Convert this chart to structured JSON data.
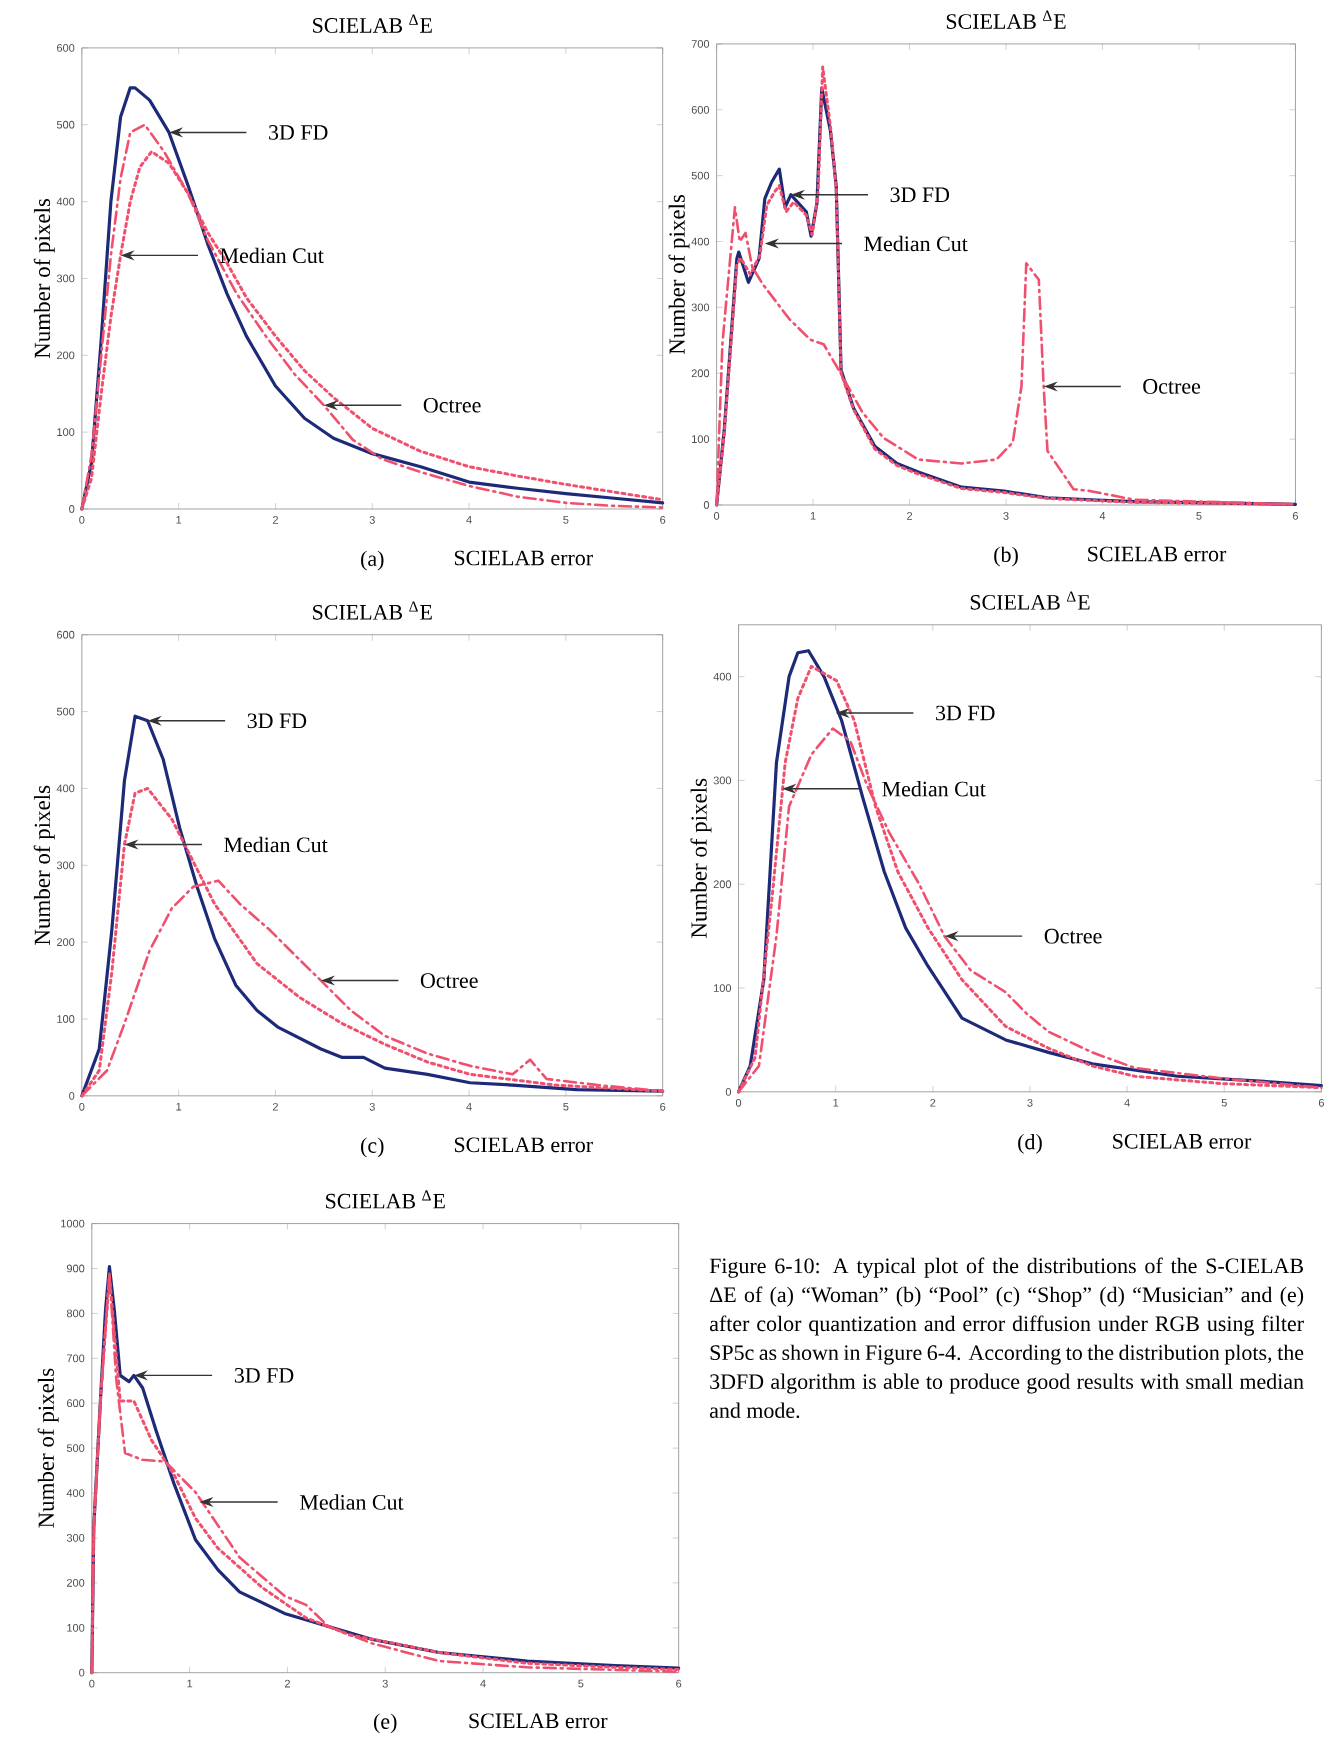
{
  "chart_data": [
    {
      "type": "line",
      "title": "SCIELAB $^{Δ}$E",
      "xlabel": "SCIELAB error",
      "ylabel": "Number of pixels",
      "xlim": [
        0,
        6
      ],
      "ylim": [
        0,
        600
      ],
      "xticks": [
        0,
        1,
        2,
        3,
        4,
        5,
        6
      ],
      "yticks": [
        0,
        100,
        200,
        300,
        400,
        500,
        600
      ],
      "series": [
        {
          "color": "#1c2a78",
          "line_style": "solid",
          "x": [
            0,
            0.1,
            0.2,
            0.3,
            0.4,
            0.5,
            0.55,
            0.7,
            0.9,
            1.1,
            1.3,
            1.5,
            1.7,
            2,
            2.3,
            2.6,
            3,
            3.5,
            4,
            4.5,
            5,
            5.5,
            6
          ],
          "values": [
            0,
            60,
            220,
            400,
            510,
            548,
            548,
            532,
            490,
            420,
            345,
            280,
            225,
            160,
            118,
            92,
            72,
            55,
            35,
            27,
            20,
            14,
            8
          ]
        },
        {
          "color": "#f0506e",
          "line_style": "dotted",
          "x": [
            0,
            0.1,
            0.2,
            0.3,
            0.4,
            0.5,
            0.6,
            0.72,
            0.9,
            1.1,
            1.3,
            1.5,
            1.7,
            2,
            2.3,
            2.6,
            3,
            3.5,
            4,
            4.5,
            5,
            5.5,
            6
          ],
          "values": [
            0,
            40,
            150,
            250,
            330,
            400,
            445,
            465,
            450,
            410,
            360,
            320,
            275,
            225,
            180,
            145,
            105,
            75,
            55,
            43,
            32,
            22,
            12
          ]
        },
        {
          "color": "#f0506e",
          "line_style": "dashdot",
          "x": [
            0,
            0.1,
            0.2,
            0.3,
            0.4,
            0.5,
            0.65,
            0.85,
            1.1,
            1.3,
            1.6,
            1.9,
            2.2,
            2.5,
            2.8,
            3.1,
            3.5,
            4,
            4.5,
            5,
            5.5,
            6
          ],
          "values": [
            0,
            70,
            200,
            330,
            430,
            490,
            500,
            465,
            410,
            350,
            280,
            225,
            175,
            135,
            90,
            65,
            48,
            30,
            16,
            8,
            4,
            2
          ]
        }
      ],
      "annotations": [
        "(a)",
        {
          "text": "3D FD",
          "x": 0.9,
          "y": 490
        },
        {
          "text": "Median Cut",
          "x": 0.4,
          "y": 330
        },
        {
          "text": "Octree",
          "x": 2.5,
          "y": 135
        }
      ]
    },
    {
      "type": "line",
      "title": "SCIELAB $^{Δ}$E",
      "xlabel": "SCIELAB error",
      "ylabel": "Number of pixels",
      "xlim": [
        0,
        6
      ],
      "ylim": [
        0,
        700
      ],
      "xticks": [
        0,
        1,
        2,
        3,
        4,
        5,
        6
      ],
      "yticks": [
        0,
        100,
        200,
        300,
        400,
        500,
        600,
        700
      ],
      "series": [
        {
          "color": "#1c2a78",
          "line_style": "solid",
          "x": [
            0,
            0.08,
            0.21,
            0.23,
            0.33,
            0.44,
            0.5,
            0.57,
            0.65,
            0.71,
            0.77,
            0.93,
            0.98,
            1.04,
            1.09,
            1.18,
            1.24,
            1.29,
            1.42,
            1.64,
            1.87,
            2.09,
            2.54,
            2.98,
            3.43,
            3.88,
            4.33,
            6
          ],
          "values": [
            0,
            115,
            374,
            384,
            338,
            374,
            465,
            490,
            510,
            452,
            471,
            445,
            408,
            458,
            633,
            568,
            484,
            205,
            147,
            89,
            63,
            50,
            27,
            21,
            11,
            8,
            5,
            1
          ]
        },
        {
          "color": "#f0506e",
          "line_style": "dotted",
          "x": [
            0,
            0.08,
            0.21,
            0.25,
            0.35,
            0.45,
            0.52,
            0.6,
            0.65,
            0.72,
            0.8,
            0.93,
            0.99,
            1.05,
            1.1,
            1.18,
            1.24,
            1.29,
            1.42,
            1.64,
            1.87,
            2.09,
            2.54,
            2.98,
            3.43,
            3.88,
            4.33,
            6
          ],
          "values": [
            0,
            110,
            365,
            375,
            350,
            380,
            455,
            475,
            485,
            445,
            460,
            440,
            410,
            470,
            665,
            575,
            480,
            200,
            145,
            85,
            60,
            47,
            25,
            19,
            10,
            7,
            4,
            1
          ]
        },
        {
          "color": "#f0506e",
          "line_style": "dashdot",
          "x": [
            0,
            0.06,
            0.1,
            0.19,
            0.24,
            0.3,
            0.37,
            0.48,
            0.75,
            0.97,
            1.11,
            1.29,
            1.51,
            1.73,
            2.09,
            2.54,
            2.9,
            3.07,
            3.16,
            3.21,
            3.34,
            3.39,
            3.43,
            3.7,
            3.88,
            4.33,
            6
          ],
          "values": [
            0,
            244,
            309,
            452,
            400,
            413,
            361,
            335,
            283,
            251,
            244,
            199,
            141,
            102,
            69,
            63,
            69,
            95,
            180,
            367,
            342,
            180,
            82,
            24,
            21,
            8,
            1
          ]
        }
      ],
      "annotations": [
        "(b)",
        {
          "text": "3D FD",
          "x": 0.77,
          "y": 471
        },
        {
          "text": "Median Cut",
          "x": 0.5,
          "y": 397
        },
        {
          "text": "Octree",
          "x": 3.39,
          "y": 180
        }
      ]
    },
    {
      "type": "line",
      "title": "SCIELAB $^{Δ}$E",
      "xlabel": "SCIELAB error",
      "ylabel": "Number of pixels",
      "xlim": [
        0,
        6
      ],
      "ylim": [
        0,
        600
      ],
      "xticks": [
        0,
        1,
        2,
        3,
        4,
        5,
        6
      ],
      "yticks": [
        0,
        100,
        200,
        300,
        400,
        500,
        600
      ],
      "series": [
        {
          "color": "#1c2a78",
          "line_style": "solid",
          "x": [
            0,
            0.18,
            0.31,
            0.44,
            0.55,
            0.68,
            0.84,
            1.01,
            1.19,
            1.37,
            1.59,
            1.81,
            2.03,
            2.47,
            2.69,
            2.91,
            3.13,
            3.57,
            4.01,
            4.45,
            5.11,
            6
          ],
          "values": [
            0,
            61,
            216,
            410,
            494,
            488,
            438,
            349,
            272,
            205,
            144,
            111,
            89,
            61,
            50,
            50,
            36,
            28,
            17,
            14,
            8,
            6
          ]
        },
        {
          "color": "#f0506e",
          "line_style": "dotted",
          "x": [
            0,
            0.18,
            0.31,
            0.44,
            0.55,
            0.68,
            0.93,
            1.15,
            1.37,
            1.81,
            2.25,
            2.69,
            3.13,
            3.57,
            4.01,
            4.89,
            6
          ],
          "values": [
            0,
            33,
            161,
            327,
            394,
            400,
            360,
            305,
            250,
            172,
            128,
            94,
            67,
            44,
            28,
            14,
            6
          ]
        },
        {
          "color": "#f0506e",
          "line_style": "dashdot",
          "x": [
            0,
            0.26,
            0.44,
            0.7,
            0.93,
            1.15,
            1.41,
            1.63,
            1.94,
            2.25,
            2.47,
            2.78,
            3.13,
            3.57,
            4.01,
            4.45,
            4.63,
            4.8,
            5.33,
            6
          ],
          "values": [
            0,
            33,
            94,
            189,
            244,
            272,
            280,
            250,
            216,
            177,
            150,
            111,
            78,
            55,
            39,
            28,
            47,
            22,
            14,
            6
          ]
        }
      ],
      "annotations": [
        "(c)",
        {
          "text": "3D FD",
          "x": 0.68,
          "y": 488
        },
        {
          "text": "Median Cut",
          "x": 0.44,
          "y": 327
        },
        {
          "text": "Octree",
          "x": 2.47,
          "y": 150
        }
      ]
    },
    {
      "type": "line",
      "title": "SCIELAB $^{Δ}$E",
      "xlabel": "SCIELAB error",
      "ylabel": "Number of pixels",
      "xlim": [
        0,
        6
      ],
      "ylim": [
        0,
        450
      ],
      "xticks": [
        0,
        1,
        2,
        3,
        4,
        5,
        6
      ],
      "yticks": [
        0,
        100,
        200,
        300,
        400
      ],
      "series": [
        {
          "color": "#1c2a78",
          "line_style": "solid",
          "x": [
            0,
            0.12,
            0.26,
            0.39,
            0.52,
            0.61,
            0.72,
            0.88,
            1.06,
            1.28,
            1.5,
            1.72,
            1.95,
            2.3,
            2.75,
            3.19,
            3.64,
            4.52,
            5.41,
            6
          ],
          "values": [
            0,
            25,
            108,
            317,
            400,
            423,
            425,
            400,
            358,
            283,
            212,
            158,
            121,
            71,
            50,
            38,
            27,
            15,
            10,
            6
          ]
        },
        {
          "color": "#f0506e",
          "line_style": "dotted",
          "x": [
            0,
            0.17,
            0.35,
            0.48,
            0.61,
            0.75,
            1.01,
            1.19,
            1.41,
            1.64,
            1.95,
            2.3,
            2.75,
            3.19,
            3.64,
            4.08,
            4.97,
            6
          ],
          "values": [
            0,
            33,
            192,
            317,
            379,
            410,
            396,
            358,
            275,
            212,
            158,
            108,
            63,
            42,
            25,
            15,
            8,
            4
          ]
        },
        {
          "color": "#f0506e",
          "line_style": "dashdot",
          "x": [
            0,
            0.21,
            0.39,
            0.52,
            0.75,
            0.97,
            1.15,
            1.32,
            1.55,
            1.86,
            2.12,
            2.39,
            2.75,
            2.97,
            3.19,
            3.64,
            4.08,
            4.97,
            6
          ],
          "values": [
            0,
            25,
            150,
            275,
            325,
            350,
            338,
            296,
            250,
            200,
            150,
            117,
            96,
            75,
            58,
            38,
            23,
            13,
            4
          ]
        }
      ],
      "annotations": [
        "(d)",
        {
          "text": "3D FD",
          "x": 1.0,
          "y": 365
        },
        {
          "text": "Median Cut",
          "x": 0.45,
          "y": 292
        },
        {
          "text": "Octree",
          "x": 2.12,
          "y": 150
        }
      ]
    },
    {
      "type": "line",
      "title": "SCIELAB $^{Δ}$E",
      "xlabel": "SCIELAB error",
      "ylabel": "Number of pixels",
      "xlim": [
        0,
        6
      ],
      "ylim": [
        0,
        1000
      ],
      "xticks": [
        0,
        1,
        2,
        3,
        4,
        5,
        6
      ],
      "yticks": [
        0,
        100,
        200,
        300,
        400,
        500,
        600,
        700,
        800,
        900,
        1000
      ],
      "series": [
        {
          "color": "#1c2a78",
          "line_style": "solid",
          "x": [
            0,
            0.02,
            0.09,
            0.14,
            0.18,
            0.23,
            0.29,
            0.38,
            0.43,
            0.52,
            0.66,
            0.84,
            1.06,
            1.29,
            1.51,
            1.97,
            2.42,
            2.87,
            3.55,
            4.45,
            5.35,
            6
          ],
          "values": [
            0,
            325,
            614,
            807,
            904,
            807,
            662,
            648,
            662,
            634,
            537,
            421,
            296,
            229,
            180,
            132,
            103,
            74,
            45,
            26,
            16,
            10
          ]
        },
        {
          "color": "#f0506e",
          "line_style": "dotted",
          "x": [
            0,
            0.02,
            0.09,
            0.18,
            0.29,
            0.43,
            0.61,
            0.84,
            1.06,
            1.29,
            1.74,
            2.19,
            2.64,
            3.1,
            3.55,
            4.45,
            5.35,
            6
          ],
          "values": [
            0,
            325,
            614,
            884,
            605,
            605,
            518,
            441,
            344,
            277,
            190,
            122,
            84,
            65,
            45,
            21,
            12,
            7
          ]
        },
        {
          "color": "#f0506e",
          "line_style": "dashdot",
          "x": [
            0,
            0.02,
            0.09,
            0.18,
            0.25,
            0.34,
            0.52,
            0.75,
            1.06,
            1.51,
            1.97,
            2.19,
            2.42,
            2.87,
            3.55,
            4.45,
            6
          ],
          "values": [
            0,
            320,
            610,
            889,
            653,
            489,
            474,
            470,
            402,
            257,
            171,
            151,
            103,
            65,
            26,
            12,
            2
          ]
        }
      ],
      "annotations": [
        "(e)",
        {
          "text": "3D FD",
          "x": 0.43,
          "y": 662
        },
        {
          "text": "Median Cut",
          "x": 1.1,
          "y": 380
        },
        "Figure 6-10: A typical plot of the distributions of the S-CIELAB ΔE of (a) “Woman” (b) “Pool” (c) “Shop” (d) “Musician” and (e) after color quantization and error diffusion under RGB using filter SP5c as shown in Figure 6-4. According to the distribution plots, the 3DFD algorithm is able to produce good results with small median and mode."
      ]
    }
  ]
}
